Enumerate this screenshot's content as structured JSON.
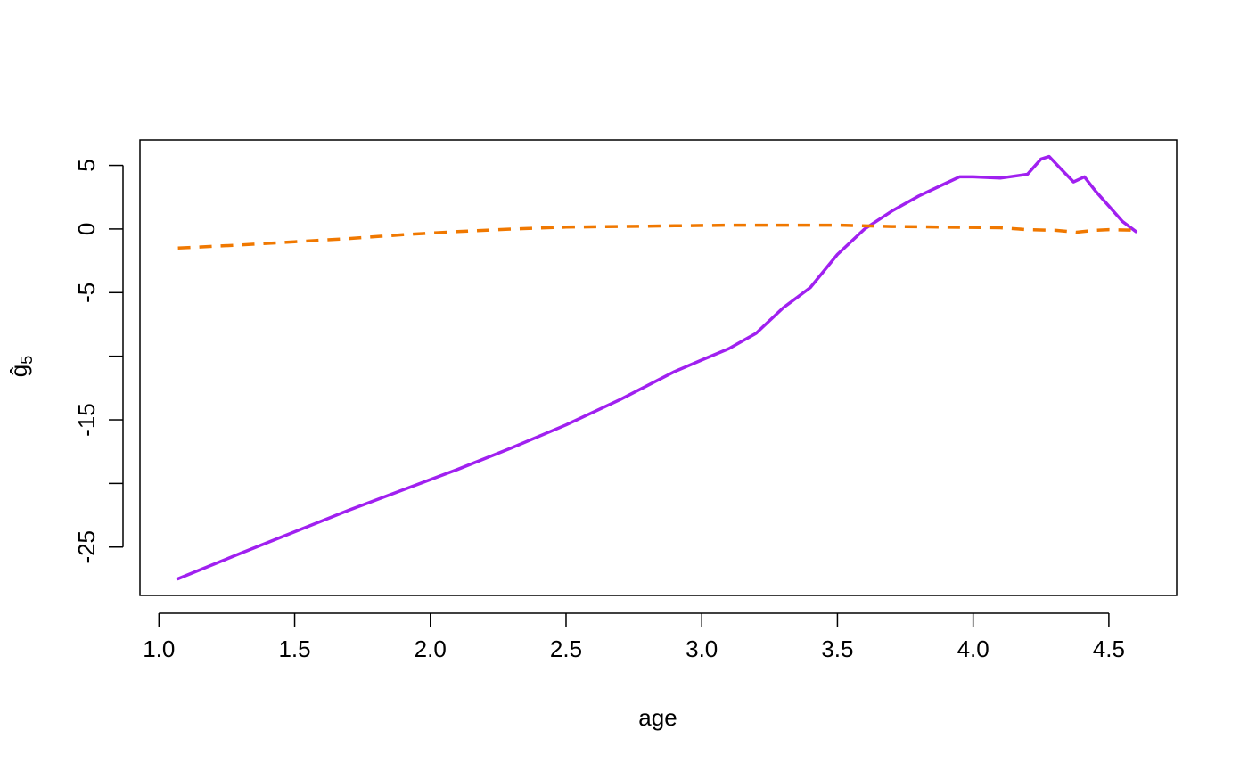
{
  "chart_data": {
    "type": "line",
    "title": "",
    "xlabel": "age",
    "ylabel": "ĝ",
    "ylabel_subscript": "5",
    "xlim": [
      0.93,
      4.75
    ],
    "ylim": [
      -28.8,
      7.0
    ],
    "x_ticks": [
      1.0,
      1.5,
      2.0,
      2.5,
      3.0,
      3.5,
      4.0,
      4.5
    ],
    "x_tick_labels": [
      "1.0",
      "1.5",
      "2.0",
      "2.5",
      "3.0",
      "3.5",
      "4.0",
      "4.5"
    ],
    "y_ticks": [
      5,
      0,
      -5,
      -10,
      -15,
      -20,
      -25
    ],
    "y_tick_labels": [
      "5",
      "0",
      "-5",
      "",
      "-15",
      "",
      "-25"
    ],
    "grid": false,
    "legend": "none",
    "series": [
      {
        "color": "#a020f0",
        "style": "solid",
        "x": [
          1.07,
          1.3,
          1.5,
          1.7,
          1.9,
          2.1,
          2.3,
          2.5,
          2.7,
          2.9,
          3.0,
          3.1,
          3.2,
          3.3,
          3.4,
          3.5,
          3.6,
          3.7,
          3.8,
          3.9,
          3.95,
          4.0,
          4.1,
          4.2,
          4.25,
          4.28,
          4.32,
          4.37,
          4.41,
          4.45,
          4.5,
          4.55,
          4.6
        ],
        "y": [
          -27.5,
          -25.5,
          -23.8,
          -22.1,
          -20.5,
          -18.9,
          -17.2,
          -15.4,
          -13.4,
          -11.2,
          -10.3,
          -9.4,
          -8.2,
          -6.2,
          -4.6,
          -2.0,
          0.0,
          1.4,
          2.6,
          3.6,
          4.1,
          4.1,
          4.0,
          4.3,
          5.5,
          5.7,
          4.8,
          3.7,
          4.1,
          3.0,
          1.8,
          0.6,
          -0.2
        ]
      },
      {
        "color": "#f07800",
        "style": "dashed",
        "x": [
          1.07,
          1.3,
          1.5,
          1.7,
          1.9,
          2.1,
          2.3,
          2.5,
          2.7,
          2.9,
          3.1,
          3.3,
          3.5,
          3.7,
          3.9,
          4.1,
          4.2,
          4.3,
          4.38,
          4.45,
          4.5,
          4.6
        ],
        "y": [
          -1.5,
          -1.25,
          -1.0,
          -0.75,
          -0.45,
          -0.2,
          0.0,
          0.15,
          0.2,
          0.25,
          0.3,
          0.3,
          0.3,
          0.2,
          0.15,
          0.1,
          -0.05,
          -0.1,
          -0.25,
          -0.1,
          -0.05,
          -0.1
        ]
      }
    ]
  }
}
